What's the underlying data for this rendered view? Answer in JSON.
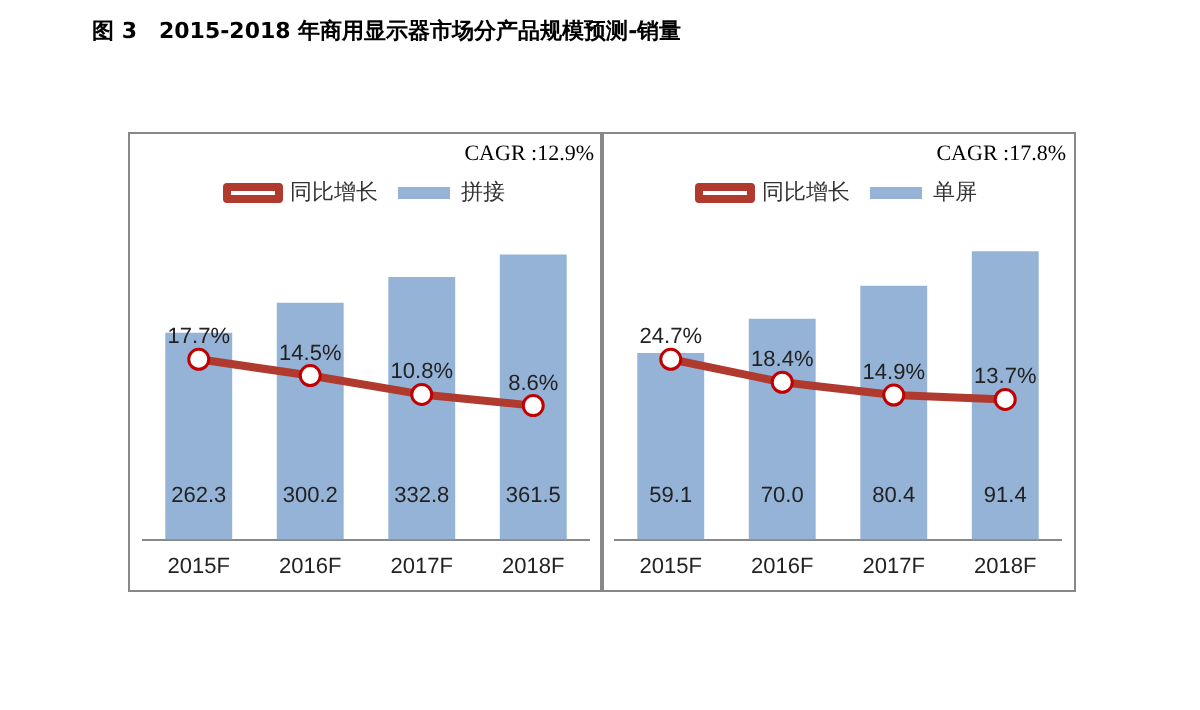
{
  "chart_data": [
    {
      "type": "bar",
      "title": "图 3　2015-2018 年商用显示器市场分产品规模预测-销量",
      "annotations": [
        "CAGR :12.9%"
      ],
      "categories": [
        "2015F",
        "2016F",
        "2017F",
        "2018F"
      ],
      "legend": "top",
      "grid": false,
      "tick_labels": "x",
      "series": [
        {
          "name": "拼接",
          "color": "#95b3d7",
          "values": [
            262.3,
            300.2,
            332.8,
            361.5
          ],
          "value_labels": [
            "262.3",
            "300.2",
            "332.8",
            "361.5"
          ]
        },
        {
          "name": "同比增长",
          "type": "line",
          "axis": "y2",
          "color": "#b03a2e",
          "marker": "circle",
          "values": [
            17.7,
            14.5,
            10.8,
            8.6
          ],
          "value_labels": [
            "17.7%",
            "14.5%",
            "10.8%",
            "8.6%"
          ]
        }
      ]
    },
    {
      "type": "bar",
      "annotations": [
        "CAGR :17.8%"
      ],
      "categories": [
        "2015F",
        "2016F",
        "2017F",
        "2018F"
      ],
      "legend": "top",
      "grid": false,
      "tick_labels": "x",
      "series": [
        {
          "name": "单屏",
          "color": "#95b3d7",
          "values": [
            59.1,
            70.0,
            80.4,
            91.4
          ],
          "value_labels": [
            "59.1",
            "70.0",
            "80.4",
            "91.4"
          ]
        },
        {
          "name": "同比增长",
          "type": "line",
          "axis": "y2",
          "color": "#b03a2e",
          "marker": "circle",
          "values": [
            24.7,
            18.4,
            14.9,
            13.7
          ],
          "value_labels": [
            "24.7%",
            "18.4%",
            "14.9%",
            "13.7%"
          ]
        }
      ]
    }
  ]
}
